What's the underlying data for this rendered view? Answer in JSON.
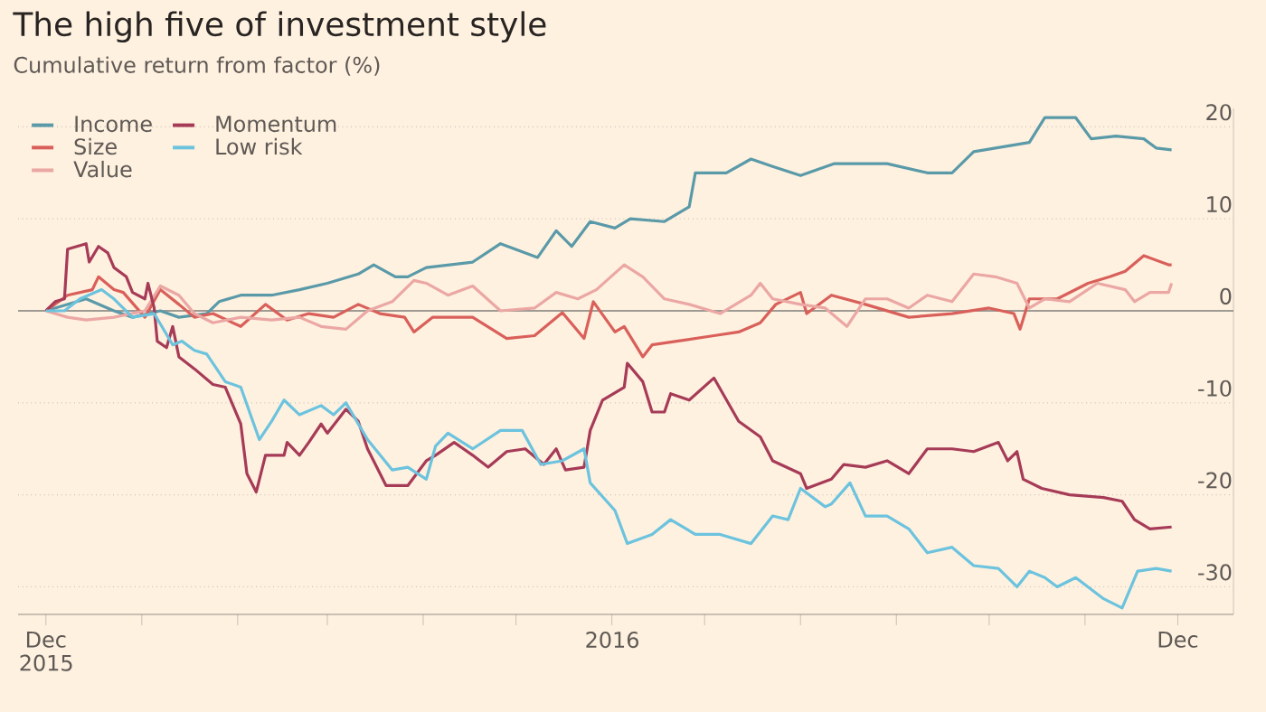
{
  "chart_data": {
    "type": "line",
    "title": "The high five of investment style",
    "subtitle": "Cumulative return from factor (%)",
    "xlim": [
      "2015-11-22",
      "2016-12-19"
    ],
    "xticks": [
      {
        "value": "2015-12-01",
        "label": "Dec 2015"
      },
      {
        "value": "2016-01-01",
        "label": null
      },
      {
        "value": "2016-02-01",
        "label": null
      },
      {
        "value": "2016-03-01",
        "label": null
      },
      {
        "value": "2016-04-01",
        "label": null
      },
      {
        "value": "2016-05-01",
        "label": null
      },
      {
        "value": "2016-06-01",
        "label": "2016"
      },
      {
        "value": "2016-07-01",
        "label": null
      },
      {
        "value": "2016-08-01",
        "label": null
      },
      {
        "value": "2016-09-01",
        "label": null
      },
      {
        "value": "2016-10-01",
        "label": null
      },
      {
        "value": "2016-11-01",
        "label": null
      },
      {
        "value": "2016-12-01",
        "label": "Dec"
      }
    ],
    "ylim": [
      -33,
      22
    ],
    "yticks": [
      -30,
      -20,
      -10,
      0,
      10,
      20
    ],
    "grid": "y",
    "legend": "top left",
    "ref_lines": [
      {
        "axis": "y",
        "value": 0,
        "color": "#9e9a94"
      }
    ],
    "series": [
      {
        "name": "Income",
        "color": "#5a9aa8",
        "x": [
          "2015-12-01",
          "2015-12-14",
          "2015-12-23",
          "2015-12-29",
          "2016-01-07",
          "2016-01-13",
          "2016-01-22",
          "2016-01-26",
          "2016-02-02",
          "2016-02-12",
          "2016-02-21",
          "2016-03-01",
          "2016-03-11",
          "2016-03-16",
          "2016-03-23",
          "2016-03-27",
          "2016-04-02",
          "2016-04-17",
          "2016-04-26",
          "2016-05-08",
          "2016-05-14",
          "2016-05-19",
          "2016-05-25",
          "2016-06-02",
          "2016-06-07",
          "2016-06-18",
          "2016-06-26",
          "2016-06-28",
          "2016-07-08",
          "2016-07-16",
          "2016-07-23",
          "2016-08-01",
          "2016-08-12",
          "2016-08-16",
          "2016-08-29",
          "2016-09-11",
          "2016-09-19",
          "2016-09-26",
          "2016-10-14",
          "2016-10-19",
          "2016-10-29",
          "2016-11-03",
          "2016-11-11",
          "2016-11-20",
          "2016-11-24",
          "2016-11-29"
        ],
        "values": [
          0,
          1.3,
          0,
          -0.7,
          0,
          -0.7,
          -0.3,
          1,
          1.7,
          1.7,
          2.3,
          3,
          4,
          5,
          3.7,
          3.7,
          4.7,
          5.3,
          7.3,
          5.8,
          8.7,
          7,
          9.7,
          9,
          10,
          9.7,
          11.3,
          15,
          15,
          16.5,
          15.7,
          14.7,
          16,
          16,
          16,
          15,
          15,
          17.3,
          18.3,
          21,
          21,
          18.7,
          19,
          18.7,
          17.7,
          17.5
        ]
      },
      {
        "name": "Size",
        "color": "#d9605a",
        "x": [
          "2015-12-01",
          "2015-12-08",
          "2015-12-16",
          "2015-12-18",
          "2015-12-23",
          "2015-12-26",
          "2016-01-02",
          "2016-01-07",
          "2016-01-13",
          "2016-01-18",
          "2016-01-24",
          "2016-02-02",
          "2016-02-10",
          "2016-02-17",
          "2016-02-24",
          "2016-03-03",
          "2016-03-11",
          "2016-03-18",
          "2016-03-26",
          "2016-03-29",
          "2016-04-04",
          "2016-04-17",
          "2016-04-28",
          "2016-05-07",
          "2016-05-16",
          "2016-05-23",
          "2016-05-26",
          "2016-06-02",
          "2016-06-05",
          "2016-06-11",
          "2016-06-14",
          "2016-06-22",
          "2016-07-04",
          "2016-07-12",
          "2016-07-19",
          "2016-07-24",
          "2016-08-01",
          "2016-08-03",
          "2016-08-11",
          "2016-08-22",
          "2016-09-05",
          "2016-09-19",
          "2016-10-01",
          "2016-10-09",
          "2016-10-11",
          "2016-10-14",
          "2016-10-23",
          "2016-11-02",
          "2016-11-09",
          "2016-11-14",
          "2016-11-20",
          "2016-11-28",
          "2016-11-29"
        ],
        "values": [
          0,
          1.7,
          2.3,
          3.7,
          2.3,
          2,
          -0.7,
          2.3,
          0.7,
          -0.7,
          -0.3,
          -1.7,
          0.7,
          -1,
          -0.3,
          -0.7,
          0.7,
          -0.3,
          -0.7,
          -2.3,
          -0.7,
          -0.7,
          -3,
          -2.7,
          -0.2,
          -3,
          1,
          -2.3,
          -1.7,
          -5,
          -3.7,
          -3.3,
          -2.7,
          -2.3,
          -1.3,
          0.7,
          2,
          -0.3,
          1.7,
          0.7,
          -0.7,
          -0.3,
          0.3,
          -0.3,
          -2,
          1.3,
          1.3,
          3,
          3.7,
          4.3,
          6,
          5,
          5
        ]
      },
      {
        "name": "Value",
        "color": "#eba7a3",
        "x": [
          "2015-12-01",
          "2015-12-08",
          "2015-12-14",
          "2015-12-23",
          "2016-01-02",
          "2016-01-07",
          "2016-01-13",
          "2016-01-18",
          "2016-01-24",
          "2016-02-02",
          "2016-02-12",
          "2016-02-21",
          "2016-02-28",
          "2016-03-07",
          "2016-03-14",
          "2016-03-22",
          "2016-03-29",
          "2016-04-02",
          "2016-04-09",
          "2016-04-17",
          "2016-04-26",
          "2016-05-07",
          "2016-05-14",
          "2016-05-21",
          "2016-05-27",
          "2016-06-05",
          "2016-06-11",
          "2016-06-18",
          "2016-06-26",
          "2016-07-06",
          "2016-07-16",
          "2016-07-19",
          "2016-07-23",
          "2016-08-01",
          "2016-08-09",
          "2016-08-16",
          "2016-08-22",
          "2016-08-29",
          "2016-09-05",
          "2016-09-11",
          "2016-09-19",
          "2016-09-26",
          "2016-10-03",
          "2016-10-10",
          "2016-10-14",
          "2016-10-19",
          "2016-10-27",
          "2016-11-05",
          "2016-11-14",
          "2016-11-17",
          "2016-11-22",
          "2016-11-28",
          "2016-11-29"
        ],
        "values": [
          0,
          -0.7,
          -1,
          -0.7,
          0,
          2.7,
          1.7,
          -0.3,
          -1.3,
          -0.7,
          -1,
          -0.7,
          -1.7,
          -2,
          0,
          1,
          3.3,
          3,
          1.7,
          2.7,
          0,
          0.3,
          2,
          1.3,
          2.3,
          5,
          3.7,
          1.3,
          0.7,
          -0.3,
          1.7,
          3,
          1.3,
          0.7,
          0.3,
          -1.7,
          1.3,
          1.3,
          0.3,
          1.7,
          1,
          4,
          3.7,
          3,
          0.3,
          1.3,
          1,
          3,
          2.3,
          1,
          2,
          2,
          3
        ]
      },
      {
        "name": "Momentum",
        "color": "#a63b57",
        "x": [
          "2015-12-01",
          "2015-12-04",
          "2015-12-07",
          "2015-12-08",
          "2015-12-14",
          "2015-12-15",
          "2015-12-18",
          "2015-12-21",
          "2015-12-23",
          "2015-12-27",
          "2015-12-29",
          "2016-01-02",
          "2016-01-03",
          "2016-01-05",
          "2016-01-06",
          "2016-01-09",
          "2016-01-11",
          "2016-01-13",
          "2016-01-18",
          "2016-01-24",
          "2016-01-28",
          "2016-02-02",
          "2016-02-04",
          "2016-02-07",
          "2016-02-10",
          "2016-02-16",
          "2016-02-17",
          "2016-02-21",
          "2016-02-24",
          "2016-02-28",
          "2016-03-01",
          "2016-03-07",
          "2016-03-11",
          "2016-03-14",
          "2016-03-20",
          "2016-03-27",
          "2016-04-02",
          "2016-04-05",
          "2016-04-11",
          "2016-04-17",
          "2016-04-22",
          "2016-04-28",
          "2016-05-04",
          "2016-05-10",
          "2016-05-14",
          "2016-05-17",
          "2016-05-23",
          "2016-05-25",
          "2016-05-29",
          "2016-06-05",
          "2016-06-06",
          "2016-06-11",
          "2016-06-14",
          "2016-06-18",
          "2016-06-20",
          "2016-06-26",
          "2016-07-04",
          "2016-07-12",
          "2016-07-19",
          "2016-07-23",
          "2016-08-01",
          "2016-08-03",
          "2016-08-11",
          "2016-08-15",
          "2016-08-22",
          "2016-08-29",
          "2016-09-05",
          "2016-09-11",
          "2016-09-19",
          "2016-09-26",
          "2016-10-04",
          "2016-10-07",
          "2016-10-10",
          "2016-10-12",
          "2016-10-18",
          "2016-10-27",
          "2016-11-07",
          "2016-11-13",
          "2016-11-17",
          "2016-11-22",
          "2016-11-29"
        ],
        "values": [
          0,
          1,
          1.3,
          6.7,
          7.3,
          5.3,
          7,
          6.3,
          4.7,
          3.7,
          2,
          1.3,
          3,
          0.3,
          -3.3,
          -4,
          -1.7,
          -5,
          -6.3,
          -8,
          -8.3,
          -12.3,
          -17.7,
          -19.7,
          -15.7,
          -15.7,
          -14.3,
          -15.7,
          -14.3,
          -12.3,
          -13.3,
          -10.7,
          -12,
          -15,
          -19,
          -19,
          -16.3,
          -15.7,
          -14.3,
          -15.7,
          -17,
          -15.3,
          -15,
          -16.7,
          -15,
          -17.3,
          -17,
          -13,
          -9.7,
          -8.3,
          -5.7,
          -7.7,
          -11,
          -11,
          -9,
          -9.7,
          -7.3,
          -12,
          -13.7,
          -16.3,
          -17.7,
          -19.3,
          -18.3,
          -16.7,
          -17,
          -16.3,
          -17.7,
          -15,
          -15,
          -15.3,
          -14.3,
          -16.3,
          -15.3,
          -18.3,
          -19.3,
          -20,
          -20.3,
          -20.7,
          -22.7,
          -23.7,
          -23.5
        ]
      },
      {
        "name": "Low risk",
        "color": "#6cc3de",
        "x": [
          "2015-12-01",
          "2015-12-07",
          "2015-12-12",
          "2015-12-19",
          "2015-12-23",
          "2015-12-29",
          "2016-01-05",
          "2016-01-11",
          "2016-01-14",
          "2016-01-18",
          "2016-01-22",
          "2016-01-28",
          "2016-02-02",
          "2016-02-08",
          "2016-02-12",
          "2016-02-16",
          "2016-02-21",
          "2016-02-28",
          "2016-03-03",
          "2016-03-07",
          "2016-03-14",
          "2016-03-22",
          "2016-03-27",
          "2016-04-02",
          "2016-04-05",
          "2016-04-09",
          "2016-04-17",
          "2016-04-26",
          "2016-05-03",
          "2016-05-09",
          "2016-05-16",
          "2016-05-23",
          "2016-05-25",
          "2016-06-02",
          "2016-06-06",
          "2016-06-14",
          "2016-06-20",
          "2016-06-28",
          "2016-07-06",
          "2016-07-16",
          "2016-07-23",
          "2016-07-28",
          "2016-08-01",
          "2016-08-09",
          "2016-08-11",
          "2016-08-17",
          "2016-08-22",
          "2016-08-29",
          "2016-09-05",
          "2016-09-11",
          "2016-09-19",
          "2016-09-26",
          "2016-10-04",
          "2016-10-10",
          "2016-10-14",
          "2016-10-19",
          "2016-10-23",
          "2016-10-29",
          "2016-11-07",
          "2016-11-13",
          "2016-11-18",
          "2016-11-24",
          "2016-11-29"
        ],
        "values": [
          0,
          0,
          1.3,
          2.3,
          1.3,
          -0.7,
          -0.3,
          -3.7,
          -3.3,
          -4.3,
          -4.7,
          -7.7,
          -8.3,
          -14,
          -12,
          -9.7,
          -11.3,
          -10.3,
          -11.3,
          -10,
          -14,
          -17.3,
          -17,
          -18.3,
          -14.7,
          -13.3,
          -15,
          -13,
          -13,
          -16.7,
          -16.3,
          -15,
          -18.7,
          -21.7,
          -25.3,
          -24.3,
          -22.7,
          -24.3,
          -24.3,
          -25.3,
          -22.3,
          -22.7,
          -19.3,
          -21.3,
          -21,
          -18.7,
          -22.3,
          -22.3,
          -23.7,
          -26.3,
          -25.7,
          -27.7,
          -28,
          -30,
          -28.3,
          -29,
          -30,
          -29,
          -31.3,
          -32.3,
          -28.3,
          -28,
          -28.3
        ]
      }
    ]
  }
}
